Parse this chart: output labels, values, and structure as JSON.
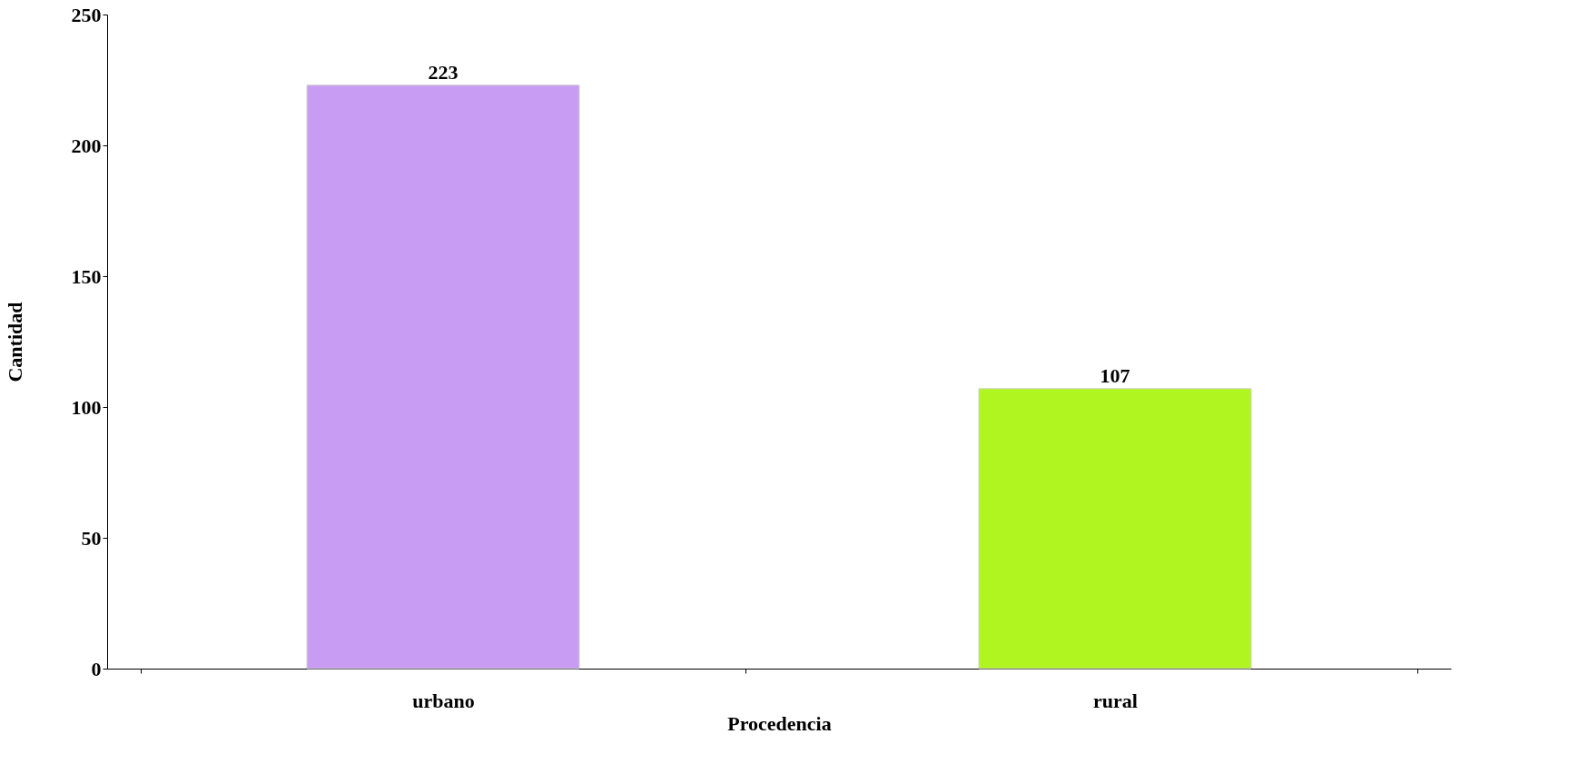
{
  "chart_data": {
    "type": "bar",
    "xlabel": "Procedencia",
    "ylabel": "Cantidad",
    "categories": [
      "urbano",
      "rural"
    ],
    "values": [
      223,
      107
    ],
    "colors": [
      "#c89cf2",
      "#b0f520"
    ],
    "ylim": [
      0,
      250
    ],
    "yticks": [
      0,
      50,
      100,
      150,
      200,
      250
    ],
    "grid": false,
    "data_labels": true
  }
}
